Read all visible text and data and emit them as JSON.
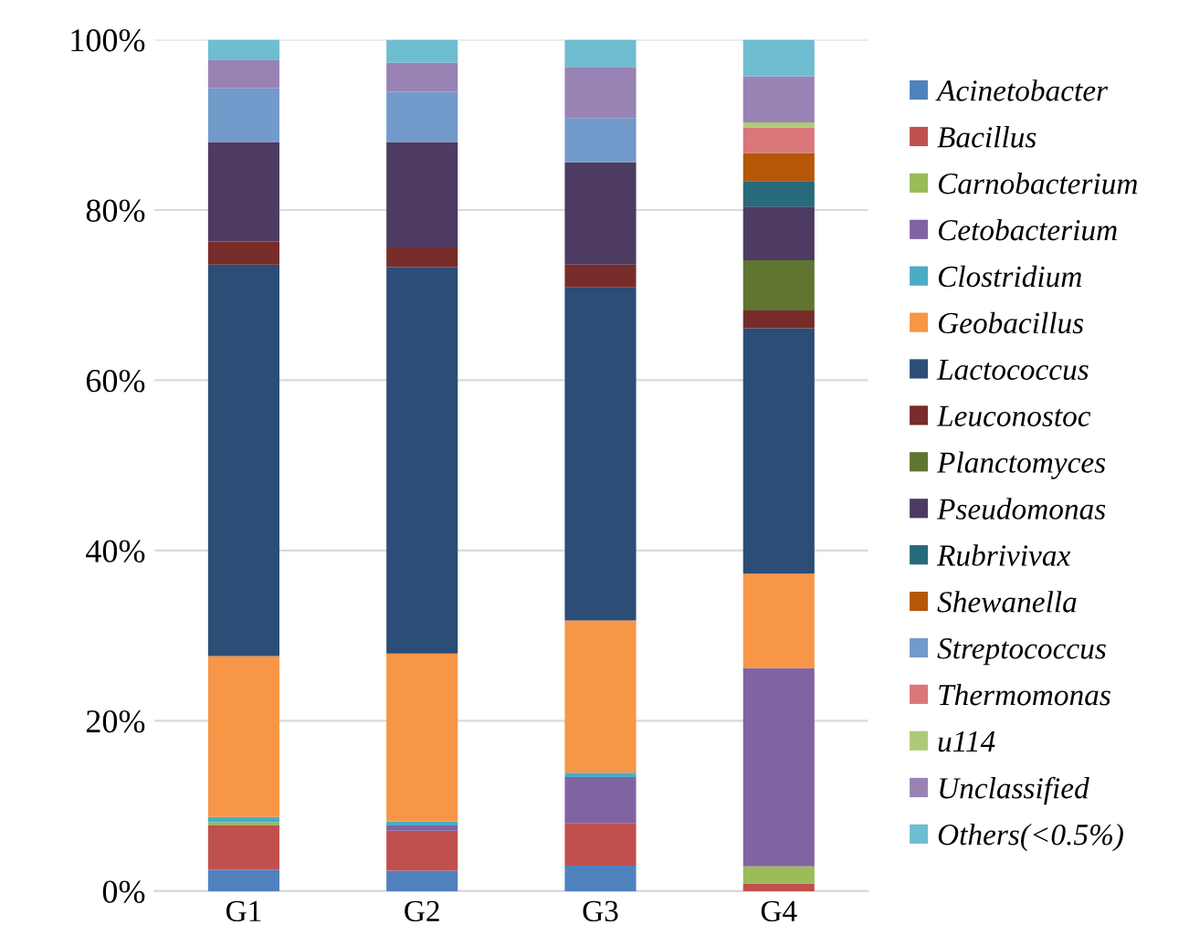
{
  "chart_data": {
    "type": "bar",
    "stacked": true,
    "categories": [
      "G1",
      "G2",
      "G3",
      "G4"
    ],
    "ylim": [
      0,
      100
    ],
    "yticks": [
      {
        "value": 0,
        "label": "0%"
      },
      {
        "value": 20,
        "label": "20%"
      },
      {
        "value": 40,
        "label": "40%"
      },
      {
        "value": 60,
        "label": "60%"
      },
      {
        "value": 80,
        "label": "80%"
      },
      {
        "value": 100,
        "label": "100%"
      }
    ],
    "grid": "y",
    "legend": "right",
    "series": [
      {
        "name": "Acinetobacter",
        "color": "#4f81bd",
        "values": [
          2.5,
          2.4,
          3.0,
          0
        ]
      },
      {
        "name": "Bacillus",
        "color": "#c0504d",
        "values": [
          5.2,
          4.7,
          5.0,
          0.9
        ]
      },
      {
        "name": "Carnobacterium",
        "color": "#9bbb59",
        "values": [
          0.4,
          0,
          0,
          2.0
        ]
      },
      {
        "name": "Cetobacterium",
        "color": "#8064a2",
        "values": [
          0,
          0.6,
          5.4,
          23.3
        ]
      },
      {
        "name": "Clostridium",
        "color": "#4bacc6",
        "values": [
          0.6,
          0.5,
          0.5,
          0
        ]
      },
      {
        "name": "Geobacillus",
        "color": "#f79646",
        "values": [
          18.9,
          19.7,
          17.9,
          11.1
        ]
      },
      {
        "name": "Lactococcus",
        "color": "#2c4d75",
        "values": [
          46.0,
          45.4,
          39.1,
          28.8
        ]
      },
      {
        "name": "Leuconostoc",
        "color": "#772c2a",
        "values": [
          2.7,
          2.3,
          2.7,
          2.1
        ]
      },
      {
        "name": "Planctomyces",
        "color": "#5f7530",
        "values": [
          0,
          0,
          0,
          5.9
        ]
      },
      {
        "name": "Pseudomonas",
        "color": "#4d3b62",
        "values": [
          11.7,
          12.4,
          12.0,
          6.3
        ]
      },
      {
        "name": "Rubrivivax",
        "color": "#276a7c",
        "values": [
          0,
          0,
          0,
          3.0
        ]
      },
      {
        "name": "Shewanella",
        "color": "#b65708",
        "values": [
          0,
          0,
          0,
          3.3
        ]
      },
      {
        "name": "Streptococcus",
        "color": "#729aca",
        "values": [
          6.3,
          5.9,
          5.2,
          0
        ]
      },
      {
        "name": "Thermomonas",
        "color": "#d9777a",
        "values": [
          0,
          0,
          0,
          3.0
        ]
      },
      {
        "name": "u114",
        "color": "#afc97a",
        "values": [
          0,
          0,
          0,
          0.6
        ]
      },
      {
        "name": "Unclassified",
        "color": "#9983b5",
        "values": [
          3.3,
          3.4,
          6.0,
          5.4
        ]
      },
      {
        "name": "Others(<0.5%)",
        "color": "#6fbdd1",
        "values": [
          2.4,
          2.7,
          3.2,
          4.3
        ]
      }
    ]
  }
}
